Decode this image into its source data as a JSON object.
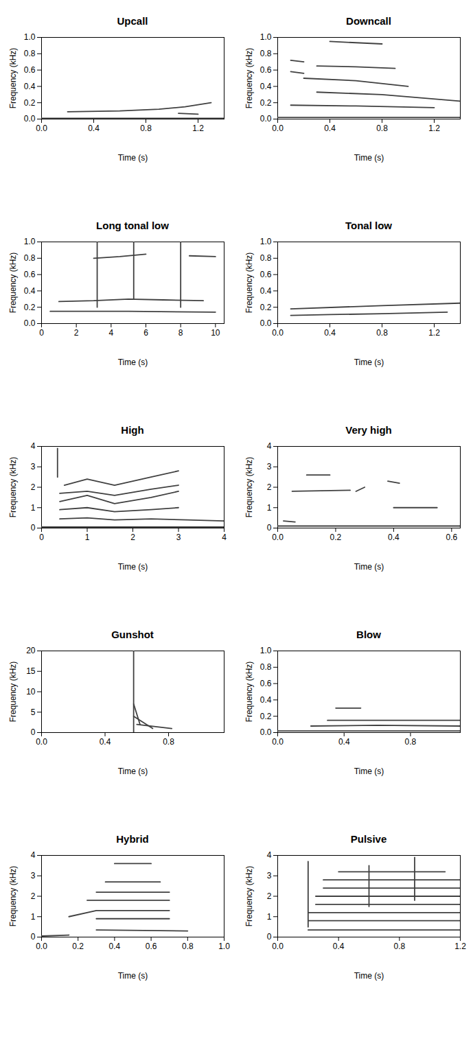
{
  "chart_data": [
    {
      "type": "line",
      "title": "Upcall",
      "xlabel": "Time (s)",
      "ylabel": "Frequency (kHz)",
      "color": "#404040",
      "xlim": [
        0,
        1.4
      ],
      "xticks": [
        {
          "value": 0,
          "label": "0.0"
        },
        0.4,
        0.8,
        1.2
      ],
      "ylim": [
        0,
        1
      ],
      "yticks": [
        {
          "value": 0,
          "label": "0.0"
        },
        0.2,
        0.4,
        0.6,
        0.8,
        {
          "value": 1,
          "label": "1.0"
        }
      ],
      "series": [
        {
          "x": [
            0,
            1.4
          ],
          "values": [
            0.01,
            0.01
          ]
        },
        {
          "x": [
            0.2,
            0.6,
            0.9,
            1.1,
            1.3
          ],
          "values": [
            0.09,
            0.1,
            0.12,
            0.15,
            0.2
          ]
        },
        {
          "x": [
            1.05,
            1.2
          ],
          "values": [
            0.07,
            0.06
          ]
        }
      ]
    },
    {
      "type": "line",
      "title": "Downcall",
      "xlabel": "Time (s)",
      "ylabel": "Frequency (kHz)",
      "color": "#404040",
      "xlim": [
        0,
        1.4
      ],
      "xticks": [
        {
          "value": 0,
          "label": "0.0"
        },
        0.4,
        0.8,
        1.2
      ],
      "ylim": [
        0,
        1
      ],
      "yticks": [
        {
          "value": 0,
          "label": "0.0"
        },
        0.2,
        0.4,
        0.6,
        0.8,
        {
          "value": 1,
          "label": "1.0"
        }
      ],
      "series": [
        {
          "x": [
            0,
            1.4
          ],
          "values": [
            0.02,
            0.02
          ]
        },
        {
          "x": [
            0.1,
            0.6,
            1.2
          ],
          "values": [
            0.17,
            0.16,
            0.14
          ]
        },
        {
          "x": [
            0.3,
            0.8,
            1.4
          ],
          "values": [
            0.33,
            0.3,
            0.22
          ]
        },
        {
          "x": [
            0.2,
            0.6,
            1.0
          ],
          "values": [
            0.5,
            0.47,
            0.4
          ]
        },
        {
          "x": [
            0.3,
            0.6,
            0.9
          ],
          "values": [
            0.65,
            0.64,
            0.62
          ]
        },
        {
          "x": [
            0.4,
            0.8
          ],
          "values": [
            0.95,
            0.92
          ]
        },
        {
          "x": [
            0.1,
            0.2
          ],
          "values": [
            0.72,
            0.7
          ]
        },
        {
          "x": [
            0.1,
            0.2
          ],
          "values": [
            0.58,
            0.56
          ]
        }
      ]
    },
    {
      "type": "line",
      "title": "Long tonal low",
      "xlabel": "Time (s)",
      "ylabel": "Frequency (kHz)",
      "color": "#404040",
      "xlim": [
        0,
        10.5
      ],
      "xticks": [
        0,
        2,
        4,
        6,
        8,
        10
      ],
      "ylim": [
        0,
        1
      ],
      "yticks": [
        {
          "value": 0,
          "label": "0.0"
        },
        0.2,
        0.4,
        0.6,
        0.8,
        {
          "value": 1,
          "label": "1.0"
        }
      ],
      "series": [
        {
          "x": [
            1,
            3,
            5,
            7,
            9.3
          ],
          "values": [
            0.27,
            0.28,
            0.3,
            0.29,
            0.28
          ]
        },
        {
          "x": [
            0.5,
            5,
            10
          ],
          "values": [
            0.15,
            0.15,
            0.14
          ]
        },
        {
          "x": [
            3.2,
            3.2
          ],
          "values": [
            0.2,
            1
          ]
        },
        {
          "x": [
            5.3,
            5.3
          ],
          "values": [
            0.3,
            1
          ]
        },
        {
          "x": [
            8,
            8
          ],
          "values": [
            0.2,
            1
          ]
        },
        {
          "x": [
            3,
            4.5,
            6
          ],
          "values": [
            0.8,
            0.82,
            0.85
          ]
        },
        {
          "x": [
            8.5,
            10
          ],
          "values": [
            0.83,
            0.82
          ]
        }
      ]
    },
    {
      "type": "line",
      "title": "Tonal low",
      "xlabel": "Time (s)",
      "ylabel": "Frequency (kHz)",
      "color": "#404040",
      "xlim": [
        0,
        1.4
      ],
      "xticks": [
        {
          "value": 0,
          "label": "0.0"
        },
        0.4,
        0.8,
        1.2
      ],
      "ylim": [
        0,
        1
      ],
      "yticks": [
        {
          "value": 0,
          "label": "0.0"
        },
        0.2,
        0.4,
        0.6,
        0.8,
        {
          "value": 1,
          "label": "1.0"
        }
      ],
      "series": [
        {
          "x": [
            0.1,
            0.4,
            0.8,
            1.3
          ],
          "values": [
            0.1,
            0.11,
            0.12,
            0.14
          ]
        },
        {
          "x": [
            0.1,
            0.8,
            1.4
          ],
          "values": [
            0.18,
            0.22,
            0.25
          ]
        }
      ]
    },
    {
      "type": "line",
      "title": "High",
      "xlabel": "Time (s)",
      "ylabel": "Frequency (kHz)",
      "color": "#404040",
      "xlim": [
        0,
        4
      ],
      "xticks": [
        0,
        1,
        2,
        3,
        4
      ],
      "ylim": [
        0,
        4
      ],
      "yticks": [
        0,
        1,
        2,
        3,
        4
      ],
      "series": [
        {
          "x": [
            0,
            4
          ],
          "values": [
            0.05,
            0.05
          ]
        },
        {
          "x": [
            0.4,
            1.0,
            1.6,
            2.4,
            3.2,
            4.0
          ],
          "values": [
            0.45,
            0.5,
            0.4,
            0.45,
            0.4,
            0.35
          ]
        },
        {
          "x": [
            0.4,
            1.0,
            1.6,
            2.4,
            3.0
          ],
          "values": [
            0.9,
            1.0,
            0.8,
            0.9,
            1.0
          ]
        },
        {
          "x": [
            0.4,
            1.0,
            1.6,
            2.4,
            3.0
          ],
          "values": [
            1.3,
            1.6,
            1.2,
            1.5,
            1.8
          ]
        },
        {
          "x": [
            0.4,
            1.0,
            1.6,
            2.4,
            3.0
          ],
          "values": [
            1.7,
            1.8,
            1.6,
            1.9,
            2.1
          ]
        },
        {
          "x": [
            0.5,
            1.0,
            1.6,
            2.4,
            3.0
          ],
          "values": [
            2.1,
            2.4,
            2.1,
            2.5,
            2.8
          ]
        },
        {
          "x": [
            0.35,
            0.35
          ],
          "values": [
            2.5,
            3.9
          ]
        }
      ]
    },
    {
      "type": "line",
      "title": "Very high",
      "xlabel": "Time (s)",
      "ylabel": "Frequency (kHz)",
      "color": "#404040",
      "xlim": [
        0,
        0.63
      ],
      "xticks": [
        {
          "value": 0,
          "label": "0.0"
        },
        0.2,
        0.4,
        0.6
      ],
      "ylim": [
        0,
        4
      ],
      "yticks": [
        0,
        1,
        2,
        3,
        4
      ],
      "series": [
        {
          "x": [
            0,
            0.63
          ],
          "values": [
            0.1,
            0.1
          ]
        },
        {
          "x": [
            0.1,
            0.18
          ],
          "values": [
            2.6,
            2.6
          ]
        },
        {
          "x": [
            0.05,
            0.25
          ],
          "values": [
            1.8,
            1.85
          ]
        },
        {
          "x": [
            0.27,
            0.3
          ],
          "values": [
            1.8,
            2.0
          ]
        },
        {
          "x": [
            0.38,
            0.42
          ],
          "values": [
            2.3,
            2.2
          ]
        },
        {
          "x": [
            0.4,
            0.55
          ],
          "values": [
            1.0,
            1.0
          ]
        },
        {
          "x": [
            0.02,
            0.06
          ],
          "values": [
            0.35,
            0.3
          ]
        }
      ]
    },
    {
      "type": "line",
      "title": "Gunshot",
      "xlabel": "Time (s)",
      "ylabel": "Frequency (kHz)",
      "color": "#404040",
      "xlim": [
        0,
        1.15
      ],
      "xticks": [
        {
          "value": 0,
          "label": "0.0"
        },
        0.4,
        0.8
      ],
      "ylim": [
        0,
        20
      ],
      "yticks": [
        0,
        5,
        10,
        15,
        20
      ],
      "series": [
        {
          "x": [
            0.58,
            0.58
          ],
          "values": [
            0,
            20
          ]
        },
        {
          "x": [
            0.58,
            0.62
          ],
          "values": [
            7,
            2
          ]
        },
        {
          "x": [
            0.58,
            0.7
          ],
          "values": [
            4,
            1
          ]
        },
        {
          "x": [
            0.6,
            0.82
          ],
          "values": [
            2,
            1
          ]
        }
      ]
    },
    {
      "type": "line",
      "title": "Blow",
      "xlabel": "Time (s)",
      "ylabel": "Frequency (kHz)",
      "color": "#404040",
      "xlim": [
        0,
        1.1
      ],
      "xticks": [
        {
          "value": 0,
          "label": "0.0"
        },
        0.4,
        0.8
      ],
      "ylim": [
        0,
        1
      ],
      "yticks": [
        {
          "value": 0,
          "label": "0.0"
        },
        0.2,
        0.4,
        0.6,
        0.8,
        {
          "value": 1,
          "label": "1.0"
        }
      ],
      "series": [
        {
          "x": [
            0,
            1.1
          ],
          "values": [
            0.02,
            0.02
          ]
        },
        {
          "x": [
            0.2,
            0.6,
            1.1
          ],
          "values": [
            0.08,
            0.09,
            0.08
          ]
        },
        {
          "x": [
            0.3,
            1.1
          ],
          "values": [
            0.15,
            0.15
          ]
        },
        {
          "x": [
            0.35,
            0.5
          ],
          "values": [
            0.3,
            0.3
          ]
        }
      ]
    },
    {
      "type": "line",
      "title": "Hybrid",
      "xlabel": "Time (s)",
      "ylabel": "Frequency (kHz)",
      "color": "#404040",
      "xlim": [
        0,
        1
      ],
      "xticks": [
        {
          "value": 0,
          "label": "0.0"
        },
        0.2,
        0.4,
        0.6,
        0.8,
        {
          "value": 1,
          "label": "1.0"
        }
      ],
      "ylim": [
        0,
        4
      ],
      "yticks": [
        0,
        1,
        2,
        3,
        4
      ],
      "series": [
        {
          "x": [
            0,
            0.15
          ],
          "values": [
            0.05,
            0.1
          ]
        },
        {
          "x": [
            0.3,
            0.8
          ],
          "values": [
            0.35,
            0.3
          ]
        },
        {
          "x": [
            0.3,
            0.7
          ],
          "values": [
            0.9,
            0.9
          ]
        },
        {
          "x": [
            0.15,
            0.3,
            0.7
          ],
          "values": [
            1.0,
            1.3,
            1.3
          ]
        },
        {
          "x": [
            0.25,
            0.7
          ],
          "values": [
            1.8,
            1.8
          ]
        },
        {
          "x": [
            0.3,
            0.7
          ],
          "values": [
            2.2,
            2.2
          ]
        },
        {
          "x": [
            0.35,
            0.65
          ],
          "values": [
            2.7,
            2.7
          ]
        },
        {
          "x": [
            0.4,
            0.6
          ],
          "values": [
            3.6,
            3.6
          ]
        }
      ]
    },
    {
      "type": "line",
      "title": "Pulsive",
      "xlabel": "Time (s)",
      "ylabel": "Frequency (kHz)",
      "color": "#404040",
      "xlim": [
        0,
        1.2
      ],
      "xticks": [
        {
          "value": 0,
          "label": "0.0"
        },
        0.4,
        0.8,
        1.2
      ],
      "ylim": [
        0,
        4
      ],
      "yticks": [
        0,
        1,
        2,
        3,
        4
      ],
      "series": [
        {
          "x": [
            0.2,
            1.2
          ],
          "values": [
            0.35,
            0.35
          ]
        },
        {
          "x": [
            0.2,
            1.2
          ],
          "values": [
            0.8,
            0.8
          ]
        },
        {
          "x": [
            0.2,
            1.2
          ],
          "values": [
            1.2,
            1.2
          ]
        },
        {
          "x": [
            0.25,
            1.2
          ],
          "values": [
            1.6,
            1.6
          ]
        },
        {
          "x": [
            0.25,
            1.2
          ],
          "values": [
            2.0,
            2.0
          ]
        },
        {
          "x": [
            0.3,
            1.2
          ],
          "values": [
            2.4,
            2.4
          ]
        },
        {
          "x": [
            0.3,
            1.2
          ],
          "values": [
            2.8,
            2.8
          ]
        },
        {
          "x": [
            0.4,
            1.1
          ],
          "values": [
            3.2,
            3.2
          ]
        },
        {
          "x": [
            0.2,
            0.2
          ],
          "values": [
            0.5,
            3.7
          ]
        },
        {
          "x": [
            0.6,
            0.6
          ],
          "values": [
            1.5,
            3.5
          ]
        },
        {
          "x": [
            0.9,
            0.9
          ],
          "values": [
            1.8,
            3.9
          ]
        }
      ]
    }
  ]
}
